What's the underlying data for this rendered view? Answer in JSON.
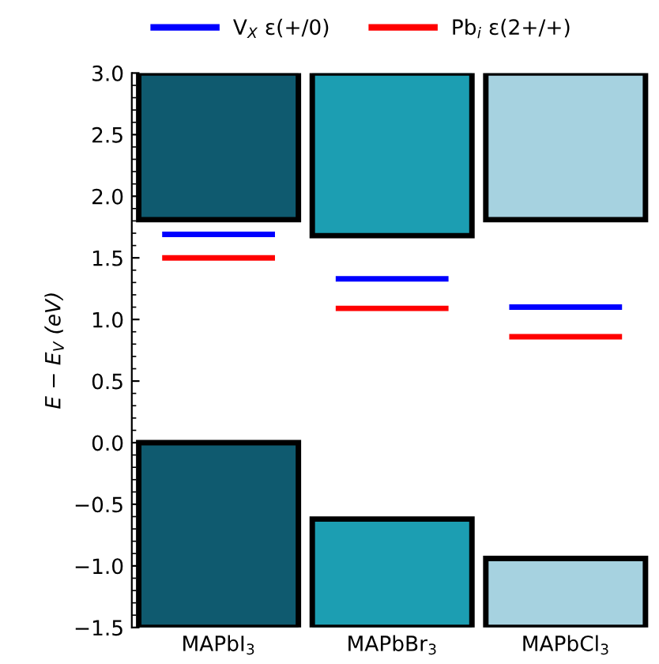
{
  "chart_data": {
    "type": "bar",
    "ylabel": "E − E$_{V}$ (eV)",
    "categories": [
      "MAPbI$_{3}$",
      "MAPbBr$_{3}$",
      "MAPbCl$_{3}$"
    ],
    "series": [
      {
        "type": "bar",
        "colors": [
          "#0f5a6f",
          "#1c9eb2",
          "#a6d2e0"
        ],
        "base": [
          -1.5,
          -1.5,
          -1.5
        ],
        "values": [
          1.5,
          0.88,
          0.56
        ]
      },
      {
        "type": "bar",
        "colors": [
          "#0f5a6f",
          "#1c9eb2",
          "#a6d2e0"
        ],
        "base": [
          1.81,
          1.68,
          1.81
        ],
        "values": [
          1.19,
          1.32,
          1.19
        ]
      },
      {
        "name": "V$_{X}$ ε(+/0)",
        "color": "#0000ff",
        "base": [
          1.69,
          1.33,
          1.1
        ],
        "values": [
          0,
          0,
          0
        ]
      },
      {
        "name": "Pb$_{i}$ ε(2+/+)",
        "color": "#ff0000",
        "base": [
          1.5,
          1.09,
          0.86
        ],
        "values": [
          0,
          0,
          0
        ]
      }
    ],
    "ylim": [
      -1.5,
      3.0
    ],
    "yticks": [
      {
        "value": -1.5,
        "label": "−1.5"
      },
      {
        "value": -1.0,
        "label": "−1.0"
      },
      {
        "value": -0.5,
        "label": "−0.5"
      },
      {
        "value": 0.0,
        "label": "0.0"
      },
      {
        "value": 0.5,
        "label": "0.5"
      },
      {
        "value": 1.0,
        "label": "1.0"
      },
      {
        "value": 1.5,
        "label": "1.5"
      },
      {
        "value": 2.0,
        "label": "2.0"
      },
      {
        "value": 2.5,
        "label": "2.5"
      },
      {
        "value": 3.0,
        "label": "3.0"
      }
    ],
    "legend": "top"
  }
}
